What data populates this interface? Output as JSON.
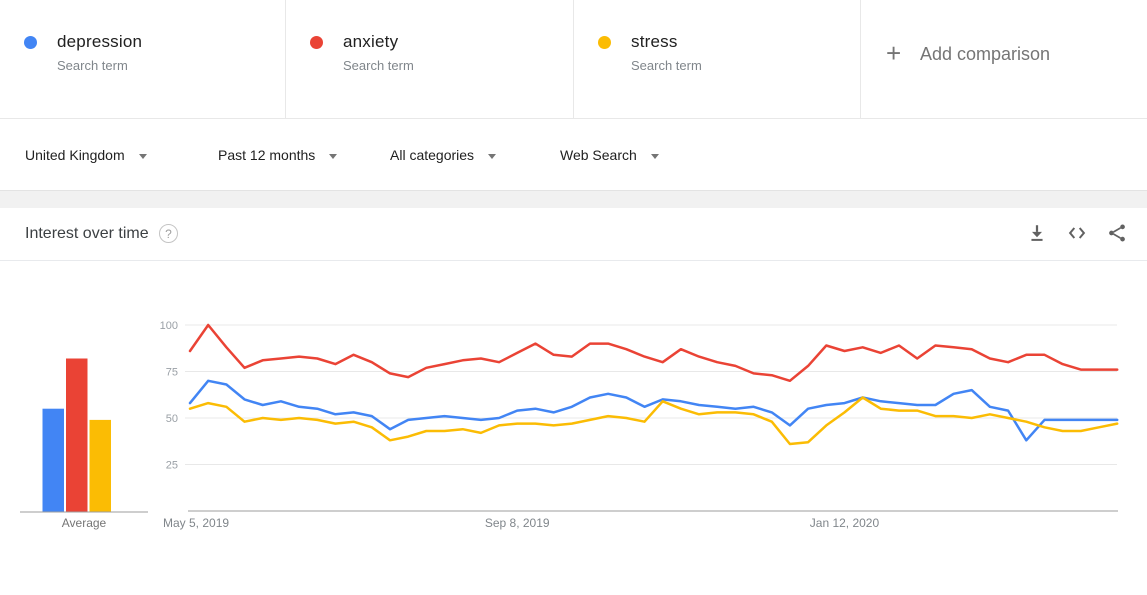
{
  "terms": [
    {
      "label": "depression",
      "sublabel": "Search term",
      "color": "#4285F4"
    },
    {
      "label": "anxiety",
      "sublabel": "Search term",
      "color": "#EA4335"
    },
    {
      "label": "stress",
      "sublabel": "Search term",
      "color": "#FBBC04"
    }
  ],
  "add_comparison": {
    "plus_glyph": "+",
    "label": "Add comparison"
  },
  "filters": [
    {
      "label": "United Kingdom"
    },
    {
      "label": "Past 12 months"
    },
    {
      "label": "All categories"
    },
    {
      "label": "Web Search"
    }
  ],
  "section": {
    "title": "Interest over time",
    "help_glyph": "?"
  },
  "header_icons": [
    {
      "name": "download-icon"
    },
    {
      "name": "embed-icon"
    },
    {
      "name": "share-icon"
    }
  ],
  "chart_data": {
    "type": "line",
    "title": "Interest over time",
    "x_tick_labels": [
      "May 5, 2019",
      "Sep 8, 2019",
      "Jan 12, 2020"
    ],
    "x_tick_weeks": [
      0,
      18,
      36
    ],
    "y_ticks": [
      25,
      50,
      75,
      100
    ],
    "ylim": [
      0,
      100
    ],
    "grid": true,
    "series": [
      {
        "name": "depression",
        "color": "#4285F4",
        "values": [
          58,
          70,
          68,
          60,
          57,
          59,
          56,
          55,
          52,
          53,
          51,
          44,
          49,
          50,
          51,
          50,
          49,
          50,
          54,
          55,
          53,
          56,
          61,
          63,
          61,
          56,
          60,
          59,
          57,
          56,
          55,
          56,
          53,
          46,
          55,
          57,
          58,
          61,
          59,
          58,
          57,
          57,
          63,
          65,
          56,
          54,
          38,
          49,
          49,
          49,
          49,
          49
        ]
      },
      {
        "name": "anxiety",
        "color": "#EA4335",
        "values": [
          86,
          100,
          88,
          77,
          81,
          82,
          83,
          82,
          79,
          84,
          80,
          74,
          72,
          77,
          79,
          81,
          82,
          80,
          85,
          90,
          84,
          83,
          90,
          90,
          87,
          83,
          80,
          87,
          83,
          80,
          78,
          74,
          73,
          70,
          78,
          89,
          86,
          88,
          85,
          89,
          82,
          89,
          88,
          87,
          82,
          80,
          84,
          84,
          79,
          76,
          76,
          76
        ]
      },
      {
        "name": "stress",
        "color": "#FBBC04",
        "values": [
          55,
          58,
          56,
          48,
          50,
          49,
          50,
          49,
          47,
          48,
          45,
          38,
          40,
          43,
          43,
          44,
          42,
          46,
          47,
          47,
          46,
          47,
          49,
          51,
          50,
          48,
          59,
          55,
          52,
          53,
          53,
          52,
          48,
          36,
          37,
          46,
          53,
          61,
          55,
          54,
          54,
          51,
          51,
          50,
          52,
          50,
          48,
          45,
          43,
          43,
          45,
          47
        ]
      }
    ],
    "averages": {
      "label": "Average",
      "values": [
        55,
        82,
        49
      ]
    }
  }
}
